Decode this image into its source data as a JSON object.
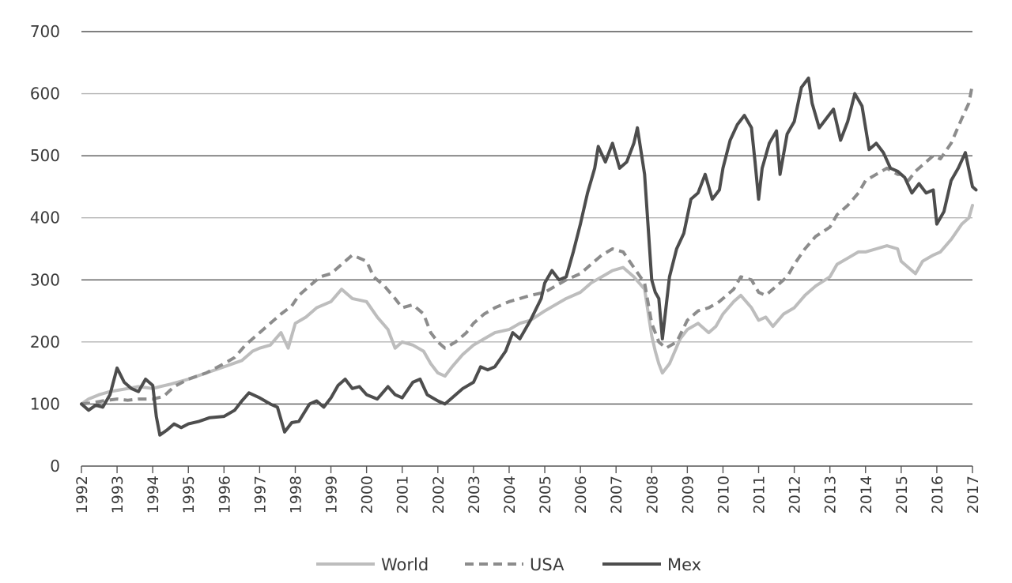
{
  "chart_data": {
    "type": "line",
    "title": "",
    "xlabel": "",
    "ylabel": "",
    "ylim": [
      0,
      700
    ],
    "yticks": [
      0,
      100,
      200,
      300,
      400,
      500,
      600,
      700
    ],
    "ytick_labels": [
      "0",
      "100",
      "200",
      "300",
      "400",
      "500",
      "600",
      "700"
    ],
    "xlim": [
      1992,
      2017
    ],
    "xtick_labels": [
      "1992",
      "1993",
      "1994",
      "1995",
      "1996",
      "1997",
      "1998",
      "1999",
      "2000",
      "2001",
      "2002",
      "2003",
      "2004",
      "2005",
      "2006",
      "2007",
      "2008",
      "2009",
      "2010",
      "2011",
      "2012",
      "2013",
      "2014",
      "2015",
      "2016",
      "2017"
    ],
    "grid": true,
    "legend_position": "bottom-center",
    "series": [
      {
        "name": "World",
        "style": "solid",
        "color": "#bdbdbd",
        "points": [
          [
            1992.0,
            100
          ],
          [
            1992.2,
            108
          ],
          [
            1992.5,
            115
          ],
          [
            1992.8,
            120
          ],
          [
            1993.0,
            122
          ],
          [
            1993.3,
            125
          ],
          [
            1993.6,
            128
          ],
          [
            1994.0,
            125
          ],
          [
            1994.2,
            128
          ],
          [
            1994.5,
            132
          ],
          [
            1995.0,
            140
          ],
          [
            1995.5,
            150
          ],
          [
            1996.0,
            160
          ],
          [
            1996.5,
            170
          ],
          [
            1996.8,
            185
          ],
          [
            1997.0,
            190
          ],
          [
            1997.3,
            195
          ],
          [
            1997.6,
            215
          ],
          [
            1997.8,
            190
          ],
          [
            1998.0,
            230
          ],
          [
            1998.3,
            240
          ],
          [
            1998.6,
            255
          ],
          [
            1999.0,
            265
          ],
          [
            1999.3,
            285
          ],
          [
            1999.6,
            270
          ],
          [
            2000.0,
            265
          ],
          [
            2000.3,
            240
          ],
          [
            2000.6,
            220
          ],
          [
            2000.8,
            190
          ],
          [
            2001.0,
            200
          ],
          [
            2001.3,
            195
          ],
          [
            2001.6,
            185
          ],
          [
            2001.8,
            165
          ],
          [
            2002.0,
            150
          ],
          [
            2002.2,
            145
          ],
          [
            2002.4,
            160
          ],
          [
            2002.7,
            180
          ],
          [
            2003.0,
            195
          ],
          [
            2003.3,
            205
          ],
          [
            2003.6,
            215
          ],
          [
            2004.0,
            220
          ],
          [
            2004.3,
            230
          ],
          [
            2004.6,
            235
          ],
          [
            2005.0,
            250
          ],
          [
            2005.3,
            260
          ],
          [
            2005.6,
            270
          ],
          [
            2006.0,
            280
          ],
          [
            2006.3,
            295
          ],
          [
            2006.6,
            305
          ],
          [
            2006.9,
            315
          ],
          [
            2007.2,
            320
          ],
          [
            2007.5,
            305
          ],
          [
            2007.8,
            285
          ],
          [
            2008.0,
            210
          ],
          [
            2008.1,
            185
          ],
          [
            2008.2,
            165
          ],
          [
            2008.3,
            150
          ],
          [
            2008.5,
            165
          ],
          [
            2008.8,
            205
          ],
          [
            2009.0,
            220
          ],
          [
            2009.3,
            230
          ],
          [
            2009.6,
            215
          ],
          [
            2009.8,
            225
          ],
          [
            2010.0,
            245
          ],
          [
            2010.3,
            265
          ],
          [
            2010.5,
            275
          ],
          [
            2010.8,
            255
          ],
          [
            2011.0,
            235
          ],
          [
            2011.2,
            240
          ],
          [
            2011.4,
            225
          ],
          [
            2011.7,
            245
          ],
          [
            2012.0,
            255
          ],
          [
            2012.3,
            275
          ],
          [
            2012.6,
            290
          ],
          [
            2013.0,
            305
          ],
          [
            2013.2,
            325
          ],
          [
            2013.5,
            335
          ],
          [
            2013.8,
            345
          ],
          [
            2014.0,
            345
          ],
          [
            2014.3,
            350
          ],
          [
            2014.6,
            355
          ],
          [
            2014.9,
            350
          ],
          [
            2015.0,
            330
          ],
          [
            2015.2,
            320
          ],
          [
            2015.4,
            310
          ],
          [
            2015.6,
            330
          ],
          [
            2015.9,
            340
          ],
          [
            2016.1,
            345
          ],
          [
            2016.4,
            365
          ],
          [
            2016.7,
            390
          ],
          [
            2016.9,
            400
          ],
          [
            2017.0,
            420
          ]
        ]
      },
      {
        "name": "USA",
        "style": "dashed",
        "color": "#8c8c8c",
        "points": [
          [
            1992.0,
            100
          ],
          [
            1992.3,
            102
          ],
          [
            1992.6,
            105
          ],
          [
            1993.0,
            108
          ],
          [
            1993.3,
            106
          ],
          [
            1993.6,
            108
          ],
          [
            1994.0,
            108
          ],
          [
            1994.3,
            112
          ],
          [
            1994.6,
            128
          ],
          [
            1995.0,
            140
          ],
          [
            1995.5,
            150
          ],
          [
            1996.0,
            165
          ],
          [
            1996.3,
            175
          ],
          [
            1996.6,
            195
          ],
          [
            1997.0,
            215
          ],
          [
            1997.3,
            230
          ],
          [
            1997.6,
            245
          ],
          [
            1997.9,
            258
          ],
          [
            1998.1,
            275
          ],
          [
            1998.4,
            290
          ],
          [
            1998.7,
            305
          ],
          [
            1999.0,
            310
          ],
          [
            1999.3,
            325
          ],
          [
            1999.6,
            340
          ],
          [
            2000.0,
            330
          ],
          [
            2000.2,
            305
          ],
          [
            2000.5,
            290
          ],
          [
            2000.8,
            270
          ],
          [
            2001.0,
            255
          ],
          [
            2001.3,
            260
          ],
          [
            2001.6,
            245
          ],
          [
            2001.8,
            215
          ],
          [
            2002.0,
            200
          ],
          [
            2002.2,
            190
          ],
          [
            2002.5,
            200
          ],
          [
            2002.8,
            215
          ],
          [
            2003.0,
            230
          ],
          [
            2003.3,
            245
          ],
          [
            2003.6,
            255
          ],
          [
            2004.0,
            265
          ],
          [
            2004.3,
            270
          ],
          [
            2004.6,
            275
          ],
          [
            2005.0,
            280
          ],
          [
            2005.3,
            290
          ],
          [
            2005.6,
            300
          ],
          [
            2006.0,
            310
          ],
          [
            2006.3,
            325
          ],
          [
            2006.6,
            340
          ],
          [
            2006.9,
            350
          ],
          [
            2007.2,
            345
          ],
          [
            2007.5,
            320
          ],
          [
            2007.8,
            295
          ],
          [
            2008.0,
            230
          ],
          [
            2008.2,
            200
          ],
          [
            2008.4,
            190
          ],
          [
            2008.7,
            200
          ],
          [
            2009.0,
            235
          ],
          [
            2009.3,
            250
          ],
          [
            2009.6,
            255
          ],
          [
            2009.9,
            265
          ],
          [
            2010.0,
            270
          ],
          [
            2010.3,
            285
          ],
          [
            2010.5,
            305
          ],
          [
            2010.8,
            300
          ],
          [
            2011.0,
            280
          ],
          [
            2011.2,
            275
          ],
          [
            2011.5,
            290
          ],
          [
            2011.8,
            305
          ],
          [
            2012.0,
            325
          ],
          [
            2012.3,
            350
          ],
          [
            2012.6,
            370
          ],
          [
            2013.0,
            385
          ],
          [
            2013.2,
            405
          ],
          [
            2013.5,
            420
          ],
          [
            2013.8,
            440
          ],
          [
            2014.0,
            460
          ],
          [
            2014.3,
            470
          ],
          [
            2014.6,
            480
          ],
          [
            2014.9,
            470
          ],
          [
            2015.0,
            470
          ],
          [
            2015.2,
            460
          ],
          [
            2015.4,
            475
          ],
          [
            2015.6,
            485
          ],
          [
            2015.9,
            500
          ],
          [
            2016.1,
            495
          ],
          [
            2016.4,
            520
          ],
          [
            2016.7,
            560
          ],
          [
            2016.9,
            585
          ],
          [
            2017.0,
            615
          ]
        ]
      },
      {
        "name": "Mex",
        "style": "solid",
        "color": "#4d4d4d",
        "points": [
          [
            1992.0,
            100
          ],
          [
            1992.2,
            90
          ],
          [
            1992.4,
            98
          ],
          [
            1992.6,
            95
          ],
          [
            1992.8,
            115
          ],
          [
            1993.0,
            158
          ],
          [
            1993.2,
            135
          ],
          [
            1993.4,
            125
          ],
          [
            1993.6,
            120
          ],
          [
            1993.8,
            140
          ],
          [
            1994.0,
            130
          ],
          [
            1994.1,
            80
          ],
          [
            1994.2,
            50
          ],
          [
            1994.4,
            58
          ],
          [
            1994.6,
            68
          ],
          [
            1994.8,
            62
          ],
          [
            1995.0,
            68
          ],
          [
            1995.3,
            72
          ],
          [
            1995.6,
            78
          ],
          [
            1996.0,
            80
          ],
          [
            1996.3,
            90
          ],
          [
            1996.5,
            105
          ],
          [
            1996.7,
            118
          ],
          [
            1997.0,
            110
          ],
          [
            1997.3,
            100
          ],
          [
            1997.5,
            95
          ],
          [
            1997.7,
            55
          ],
          [
            1997.9,
            70
          ],
          [
            1998.1,
            72
          ],
          [
            1998.4,
            100
          ],
          [
            1998.6,
            105
          ],
          [
            1998.8,
            95
          ],
          [
            1999.0,
            110
          ],
          [
            1999.2,
            130
          ],
          [
            1999.4,
            140
          ],
          [
            1999.6,
            125
          ],
          [
            1999.8,
            128
          ],
          [
            2000.0,
            115
          ],
          [
            2000.3,
            108
          ],
          [
            2000.6,
            128
          ],
          [
            2000.8,
            115
          ],
          [
            2001.0,
            110
          ],
          [
            2001.3,
            135
          ],
          [
            2001.5,
            140
          ],
          [
            2001.7,
            115
          ],
          [
            2002.0,
            105
          ],
          [
            2002.2,
            100
          ],
          [
            2002.4,
            110
          ],
          [
            2002.7,
            125
          ],
          [
            2003.0,
            135
          ],
          [
            2003.2,
            160
          ],
          [
            2003.4,
            155
          ],
          [
            2003.6,
            160
          ],
          [
            2003.9,
            185
          ],
          [
            2004.1,
            215
          ],
          [
            2004.3,
            205
          ],
          [
            2004.6,
            235
          ],
          [
            2004.9,
            270
          ],
          [
            2005.0,
            295
          ],
          [
            2005.2,
            315
          ],
          [
            2005.4,
            300
          ],
          [
            2005.6,
            305
          ],
          [
            2005.8,
            345
          ],
          [
            2006.0,
            390
          ],
          [
            2006.2,
            440
          ],
          [
            2006.4,
            480
          ],
          [
            2006.5,
            515
          ],
          [
            2006.7,
            490
          ],
          [
            2006.9,
            520
          ],
          [
            2007.1,
            480
          ],
          [
            2007.3,
            490
          ],
          [
            2007.5,
            520
          ],
          [
            2007.6,
            545
          ],
          [
            2007.8,
            470
          ],
          [
            2008.0,
            300
          ],
          [
            2008.1,
            280
          ],
          [
            2008.2,
            270
          ],
          [
            2008.3,
            205
          ],
          [
            2008.5,
            305
          ],
          [
            2008.7,
            350
          ],
          [
            2008.9,
            375
          ],
          [
            2009.1,
            430
          ],
          [
            2009.3,
            440
          ],
          [
            2009.5,
            470
          ],
          [
            2009.7,
            430
          ],
          [
            2009.9,
            445
          ],
          [
            2010.0,
            480
          ],
          [
            2010.2,
            525
          ],
          [
            2010.4,
            550
          ],
          [
            2010.6,
            565
          ],
          [
            2010.8,
            545
          ],
          [
            2010.9,
            490
          ],
          [
            2011.0,
            430
          ],
          [
            2011.1,
            480
          ],
          [
            2011.3,
            520
          ],
          [
            2011.5,
            540
          ],
          [
            2011.6,
            470
          ],
          [
            2011.8,
            535
          ],
          [
            2012.0,
            555
          ],
          [
            2012.2,
            610
          ],
          [
            2012.4,
            625
          ],
          [
            2012.5,
            585
          ],
          [
            2012.7,
            545
          ],
          [
            2012.9,
            560
          ],
          [
            2013.1,
            575
          ],
          [
            2013.3,
            525
          ],
          [
            2013.5,
            555
          ],
          [
            2013.7,
            600
          ],
          [
            2013.9,
            580
          ],
          [
            2014.1,
            510
          ],
          [
            2014.3,
            520
          ],
          [
            2014.5,
            505
          ],
          [
            2014.7,
            480
          ],
          [
            2014.9,
            475
          ],
          [
            2015.1,
            465
          ],
          [
            2015.3,
            440
          ],
          [
            2015.5,
            455
          ],
          [
            2015.7,
            440
          ],
          [
            2015.9,
            445
          ],
          [
            2016.0,
            390
          ],
          [
            2016.2,
            410
          ],
          [
            2016.4,
            460
          ],
          [
            2016.6,
            480
          ],
          [
            2016.8,
            505
          ],
          [
            2017.0,
            450
          ],
          [
            2017.1,
            445
          ]
        ]
      }
    ]
  }
}
